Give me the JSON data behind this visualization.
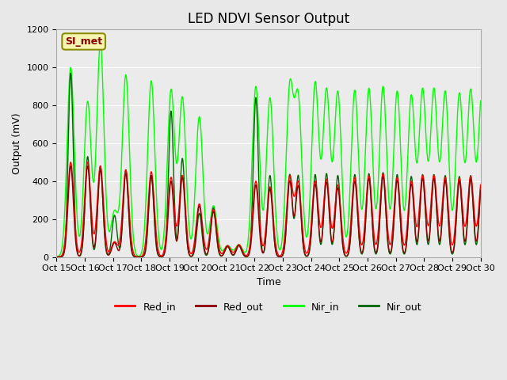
{
  "title": "LED NDVI Sensor Output",
  "xlabel": "Time",
  "ylabel": "Output (mV)",
  "ylim": [
    0,
    1200
  ],
  "background_color": "#e8e8e8",
  "plot_bg_color": "#ebebeb",
  "x_tick_labels": [
    "Oct 15",
    "Oct 16",
    "Oct 17",
    "Oct 18",
    "Oct 19",
    "Oct 20",
    "Oct 21",
    "Oct 22",
    "Oct 23",
    "Oct 24",
    "Oct 25",
    "Oct 26",
    "Oct 27",
    "Oct 28",
    "Oct 29",
    "Oct 30"
  ],
  "legend_label": "SI_met",
  "yticks": [
    0,
    200,
    400,
    600,
    800,
    1000,
    1200
  ],
  "series": {
    "Red_in": {
      "color": "#ff0000",
      "lw": 1.0
    },
    "Red_out": {
      "color": "#8b0000",
      "lw": 1.0
    },
    "Nir_in": {
      "color": "#00ff00",
      "lw": 1.0
    },
    "Nir_out": {
      "color": "#006400",
      "lw": 1.0
    }
  },
  "spike_centers": [
    0.5,
    1.1,
    1.55,
    2.05,
    2.45,
    3.35,
    4.05,
    4.45,
    5.05,
    5.55,
    6.05,
    6.45,
    7.05,
    7.55,
    8.25,
    8.55,
    9.15,
    9.55,
    9.95,
    10.55,
    11.05,
    11.55,
    12.05,
    12.55,
    12.95,
    13.35,
    13.75,
    14.25,
    14.65,
    15.05
  ],
  "red_in_h": [
    500,
    500,
    480,
    80,
    460,
    450,
    420,
    430,
    280,
    250,
    60,
    65,
    400,
    370,
    420,
    390,
    400,
    410,
    380,
    420,
    430,
    440,
    420,
    400,
    430,
    430,
    420,
    415,
    425,
    420
  ],
  "red_out_h": [
    480,
    480,
    460,
    75,
    440,
    430,
    400,
    420,
    270,
    240,
    55,
    60,
    380,
    360,
    400,
    375,
    385,
    395,
    365,
    400,
    415,
    425,
    405,
    385,
    415,
    415,
    405,
    400,
    410,
    405
  ],
  "nir_in_h": [
    1000,
    820,
    1130,
    240,
    960,
    930,
    880,
    840,
    740,
    270,
    60,
    65,
    900,
    840,
    880,
    820,
    920,
    880,
    870,
    880,
    890,
    900,
    875,
    850,
    880,
    880,
    870,
    860,
    875,
    870
  ],
  "nir_out_h": [
    970,
    530,
    480,
    220,
    460,
    430,
    770,
    520,
    230,
    260,
    55,
    60,
    840,
    430,
    435,
    430,
    435,
    440,
    430,
    435,
    440,
    445,
    435,
    425,
    435,
    435,
    430,
    425,
    430,
    428
  ]
}
